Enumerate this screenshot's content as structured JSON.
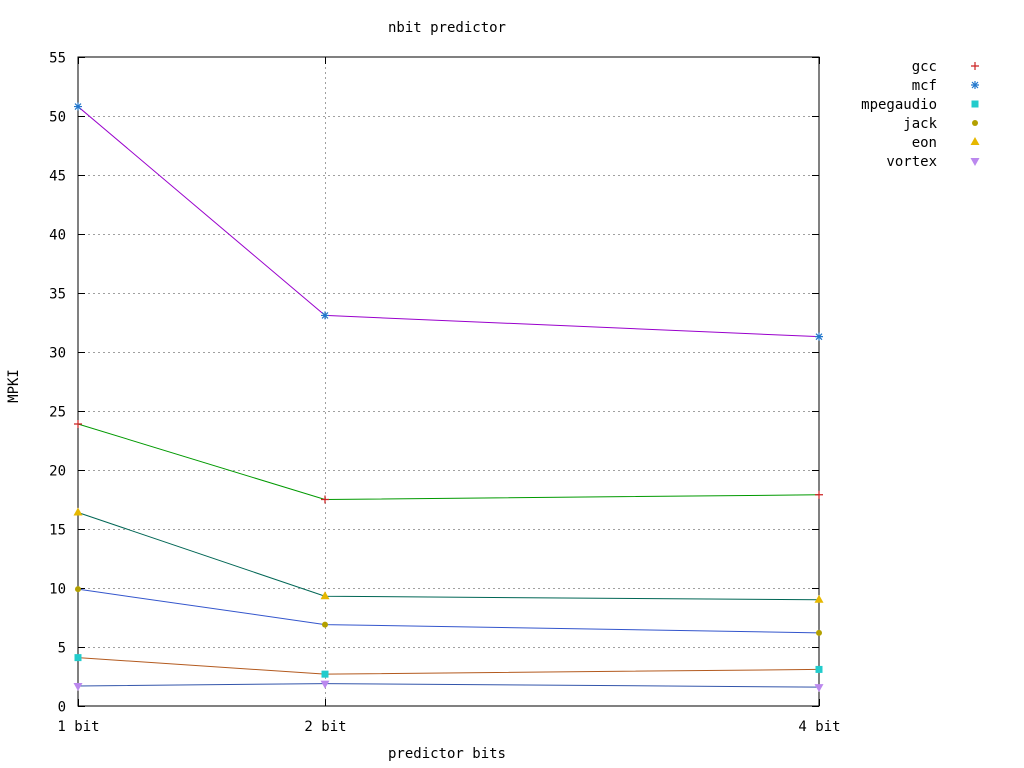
{
  "chart_data": {
    "type": "line",
    "title": "nbit predictor",
    "xlabel": "predictor bits",
    "ylabel": "MPKI",
    "categories": [
      "1 bit",
      "2 bit",
      "4 bit"
    ],
    "x": [
      1,
      2,
      4
    ],
    "ylim": [
      0,
      55
    ],
    "yticks": [
      0,
      5,
      10,
      15,
      20,
      25,
      30,
      35,
      40,
      45,
      50,
      55
    ],
    "ytick_labels": [
      "0",
      "5",
      "10",
      "15",
      "20",
      "25",
      "30",
      "35",
      "40",
      "45",
      "50",
      "55"
    ],
    "grid": "dotted vertical at 2 bit, horizontal at each y tick",
    "legend_position": "right",
    "series": [
      {
        "name": "gcc",
        "values": [
          23.9,
          17.5,
          17.9
        ],
        "line_color": "#009900",
        "marker_color": "#cc2222",
        "marker": "plus"
      },
      {
        "name": "mcf",
        "values": [
          50.8,
          33.1,
          31.3
        ],
        "line_color": "#9900cc",
        "marker_color": "#2277cc",
        "marker": "star"
      },
      {
        "name": "mpegaudio",
        "values": [
          4.1,
          2.7,
          3.1
        ],
        "line_color": "#b35a1f",
        "marker_color": "#22cccc",
        "marker": "square"
      },
      {
        "name": "jack",
        "values": [
          9.9,
          6.9,
          6.2
        ],
        "line_color": "#3355cc",
        "marker_color": "#b3a000",
        "marker": "circle"
      },
      {
        "name": "eon",
        "values": [
          16.4,
          9.3,
          9.0
        ],
        "line_color": "#006655",
        "marker_color": "#e6b800",
        "marker": "triangle"
      },
      {
        "name": "vortex",
        "values": [
          1.7,
          1.9,
          1.6
        ],
        "line_color": "#3355aa",
        "marker_color": "#bb88ee",
        "marker": "triangle-down"
      }
    ]
  }
}
